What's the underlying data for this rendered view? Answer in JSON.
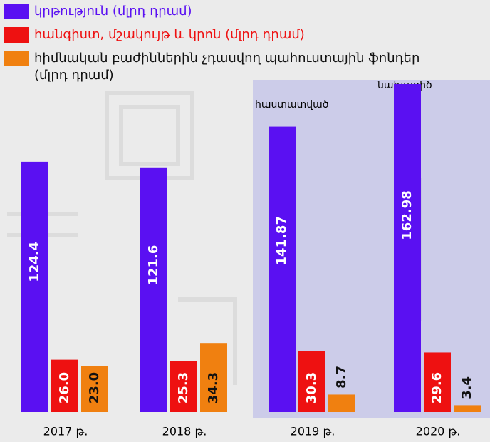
{
  "chart_data": {
    "type": "bar",
    "categories": [
      "2017 թ.",
      "2018 թ.",
      "2019 թ.",
      "2020 թ."
    ],
    "series": [
      {
        "name": "կրթություն (մլրդ դրամ)",
        "color": "#5a10f2",
        "values": [
          124.4,
          121.6,
          141.87,
          162.98
        ],
        "value_labels": [
          "124.4",
          "121.6",
          "141.87",
          "162.98"
        ]
      },
      {
        "name": "հանգիստ, մշակույթ և կրոն (մլրդ դրամ)",
        "color": "#ee1111",
        "values": [
          26,
          25.3,
          30.3,
          29.6
        ],
        "value_labels": [
          "26.0",
          "25.3",
          "30.3",
          "29.6"
        ]
      },
      {
        "name": "հիմնական բաժիններին չդասվող պահուստային ֆոնդեր (մլրդ դրամ)",
        "color": "#f08010",
        "values": [
          23,
          34.3,
          8.7,
          3.4
        ],
        "value_labels": [
          "23.0",
          "34.3",
          "8.7",
          "3.4"
        ]
      }
    ],
    "annotations": [
      "հաստատված",
      "նախագիծ"
    ]
  }
}
